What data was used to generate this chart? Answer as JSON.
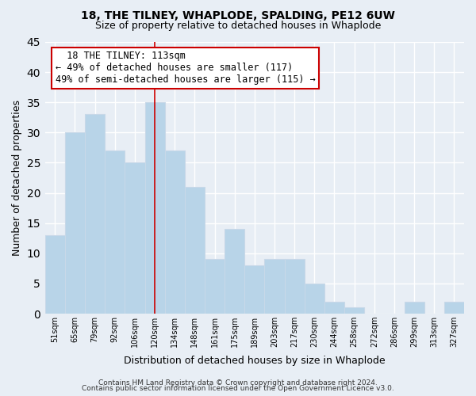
{
  "title": "18, THE TILNEY, WHAPLODE, SPALDING, PE12 6UW",
  "subtitle": "Size of property relative to detached houses in Whaplode",
  "xlabel": "Distribution of detached houses by size in Whaplode",
  "ylabel": "Number of detached properties",
  "categories": [
    "51sqm",
    "65sqm",
    "79sqm",
    "92sqm",
    "106sqm",
    "120sqm",
    "134sqm",
    "148sqm",
    "161sqm",
    "175sqm",
    "189sqm",
    "203sqm",
    "217sqm",
    "230sqm",
    "244sqm",
    "258sqm",
    "272sqm",
    "286sqm",
    "299sqm",
    "313sqm",
    "327sqm"
  ],
  "values": [
    13,
    30,
    33,
    27,
    25,
    35,
    27,
    21,
    9,
    14,
    8,
    9,
    9,
    5,
    2,
    1,
    0,
    0,
    2,
    0,
    2
  ],
  "bar_color": "#b8d4e8",
  "bar_edge_color": "#c8d8e8",
  "vline_x_index": 5,
  "vline_color": "#cc0000",
  "annotation_title": "18 THE TILNEY: 113sqm",
  "annotation_line1": "← 49% of detached houses are smaller (117)",
  "annotation_line2": "49% of semi-detached houses are larger (115) →",
  "annotation_box_color": "#ffffff",
  "annotation_box_edge": "#cc0000",
  "ylim": [
    0,
    45
  ],
  "yticks": [
    0,
    5,
    10,
    15,
    20,
    25,
    30,
    35,
    40,
    45
  ],
  "footer1": "Contains HM Land Registry data © Crown copyright and database right 2024.",
  "footer2": "Contains public sector information licensed under the Open Government Licence v3.0.",
  "background_color": "#e8eef5",
  "grid_color": "#ffffff"
}
